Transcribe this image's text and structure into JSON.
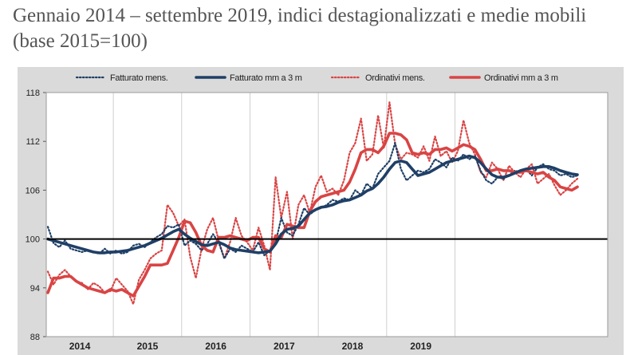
{
  "title": "Gennaio 2014 – settembre 2019, indici destagionalizzati e medie mobili (base 2015=100)",
  "chart_data": {
    "type": "line",
    "x_start": "2014-01",
    "x_end": "2019-09",
    "year_labels": [
      "2014",
      "2015",
      "2016",
      "2017",
      "2018",
      "2019"
    ],
    "ylim": [
      88,
      118
    ],
    "yticks": [
      88,
      94,
      100,
      106,
      112,
      118
    ],
    "reference_line": 100,
    "grid": "vertical lines at year boundaries",
    "legend_position": "top",
    "colors": {
      "fatturato": "#1f3f66",
      "ordinativi": "#d94444",
      "background": "#dadada",
      "reference": "#000000"
    },
    "series": [
      {
        "name": "Fatturato mens.",
        "style": "dotted",
        "color": "#1f3f66",
        "values": [
          101.5,
          99.5,
          99.0,
          99.8,
          98.8,
          98.6,
          98.4,
          98.6,
          98.4,
          98.2,
          98.8,
          98.2,
          98.6,
          98.2,
          98.4,
          99.2,
          99.4,
          99.0,
          99.6,
          100.2,
          100.6,
          101.6,
          101.4,
          101.8,
          99.2,
          99.8,
          99.4,
          98.6,
          99.4,
          100.6,
          99.6,
          97.6,
          98.8,
          98.4,
          99.2,
          98.8,
          98.4,
          99.6,
          98.0,
          98.6,
          99.6,
          102.6,
          100.8,
          100.4,
          101.8,
          103.8,
          103.0,
          103.6,
          103.8,
          104.2,
          104.8,
          104.6,
          105.0,
          104.8,
          106.0,
          105.4,
          106.8,
          106.2,
          108.0,
          108.8,
          109.6,
          111.8,
          108.6,
          107.2,
          107.8,
          108.4,
          108.2,
          108.6,
          109.8,
          109.4,
          108.8,
          110.0,
          109.6,
          110.4,
          109.8,
          110.2,
          108.4,
          107.2,
          106.8,
          107.6,
          107.4,
          107.8,
          108.4,
          108.2,
          108.6,
          107.8,
          108.8,
          109.2,
          108.6,
          108.4,
          107.8,
          108.0,
          107.6,
          107.8
        ]
      },
      {
        "name": "Fatturato mm a 3 m",
        "style": "solid",
        "color": "#1f3f66",
        "values": [
          100.0,
          99.8,
          99.6,
          99.4,
          99.2,
          99.0,
          98.8,
          98.6,
          98.4,
          98.3,
          98.3,
          98.4,
          98.4,
          98.5,
          98.6,
          98.8,
          99.0,
          99.2,
          99.5,
          99.8,
          100.1,
          100.5,
          100.9,
          101.2,
          100.6,
          100.1,
          99.7,
          99.3,
          99.2,
          99.4,
          99.6,
          99.3,
          98.9,
          98.7,
          98.6,
          98.5,
          98.4,
          98.3,
          98.4,
          98.5,
          99.4,
          100.6,
          101.2,
          101.3,
          101.6,
          102.4,
          103.2,
          103.6,
          103.9,
          104.0,
          104.2,
          104.5,
          104.7,
          104.8,
          105.1,
          105.4,
          105.9,
          106.2,
          106.8,
          107.6,
          108.6,
          109.4,
          109.6,
          109.4,
          108.6,
          107.8,
          108.0,
          108.2,
          108.6,
          109.0,
          109.4,
          109.6,
          109.8,
          110.0,
          110.2,
          110.0,
          109.4,
          108.6,
          107.9,
          107.6,
          107.6,
          107.8,
          108.1,
          108.4,
          108.6,
          108.7,
          108.8,
          108.9,
          108.9,
          108.7,
          108.4,
          108.2,
          108.0,
          107.9
        ]
      },
      {
        "name": "Ordinativi mens.",
        "style": "dotted",
        "color": "#d94444",
        "values": [
          96.0,
          94.4,
          95.6,
          96.2,
          95.4,
          94.8,
          94.6,
          93.8,
          94.6,
          94.2,
          93.4,
          93.6,
          95.2,
          94.4,
          93.6,
          92.0,
          95.0,
          96.2,
          97.6,
          98.2,
          98.6,
          104.2,
          103.2,
          101.6,
          102.4,
          97.8,
          95.2,
          98.8,
          101.2,
          102.6,
          99.8,
          97.6,
          99.6,
          102.6,
          100.4,
          99.6,
          98.6,
          101.4,
          99.2,
          96.2,
          107.6,
          102.6,
          105.8,
          100.0,
          104.2,
          105.4,
          103.2,
          106.4,
          107.8,
          105.8,
          106.2,
          105.4,
          107.2,
          110.6,
          111.8,
          114.8,
          109.6,
          110.4,
          115.2,
          111.2,
          116.8,
          111.6,
          109.8,
          110.6,
          110.4,
          110.0,
          111.4,
          109.6,
          112.6,
          110.2,
          110.8,
          109.4,
          110.8,
          114.6,
          111.8,
          110.4,
          108.2,
          107.6,
          109.4,
          108.6,
          107.2,
          109.0,
          108.2,
          107.6,
          108.6,
          109.2,
          106.8,
          107.4,
          108.0,
          106.6,
          105.4,
          106.0,
          106.8,
          107.4
        ]
      },
      {
        "name": "Ordinativi mm a 3 m",
        "style": "solid",
        "color": "#d94444",
        "values": [
          93.4,
          95.2,
          95.2,
          95.4,
          95.4,
          94.8,
          94.4,
          94.0,
          93.8,
          93.6,
          93.4,
          93.8,
          93.6,
          93.8,
          93.4,
          93.0,
          94.2,
          95.4,
          96.8,
          96.8,
          96.8,
          97.0,
          98.6,
          100.2,
          102.2,
          102.0,
          100.8,
          99.2,
          98.6,
          98.4,
          100.2,
          100.2,
          100.4,
          100.2,
          100.0,
          99.8,
          100.2,
          100.2,
          98.8,
          98.4,
          100.4,
          100.2,
          101.8,
          101.6,
          101.4,
          101.4,
          103.4,
          104.6,
          105.2,
          105.4,
          105.6,
          105.8,
          106.0,
          107.0,
          108.6,
          110.6,
          111.0,
          111.0,
          110.6,
          111.4,
          113.0,
          113.0,
          112.8,
          112.2,
          110.6,
          110.4,
          110.6,
          110.4,
          111.0,
          111.0,
          111.2,
          110.8,
          111.2,
          111.6,
          111.4,
          111.0,
          109.8,
          108.4,
          108.4,
          108.6,
          108.4,
          108.4,
          108.2,
          108.2,
          108.4,
          108.2,
          108.0,
          108.2,
          107.6,
          107.2,
          106.4,
          106.2,
          106.0,
          106.4
        ]
      }
    ]
  }
}
